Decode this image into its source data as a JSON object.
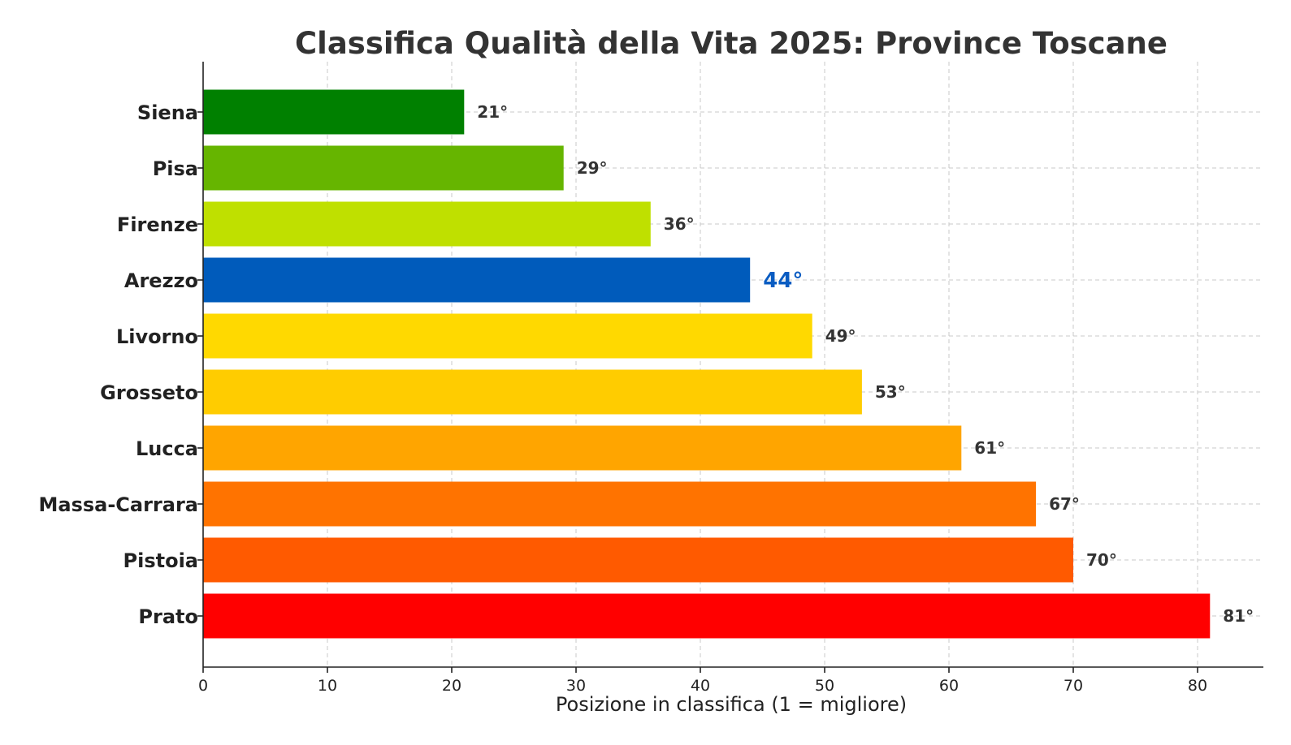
{
  "chart_data": {
    "type": "bar",
    "orientation": "horizontal",
    "title": "Classifica Qualità della Vita 2025: Province Toscane",
    "xlabel": "Posizione in classifica (1 = migliore)",
    "ylabel": "",
    "xlim": [
      0,
      85
    ],
    "xticks": [
      0,
      10,
      20,
      30,
      40,
      50,
      60,
      70,
      80
    ],
    "grid": true,
    "categories": [
      "Siena",
      "Pisa",
      "Firenze",
      "Arezzo",
      "Livorno",
      "Grosseto",
      "Lucca",
      "Massa-Carrara",
      "Pistoia",
      "Prato"
    ],
    "values": [
      21,
      29,
      36,
      44,
      49,
      53,
      61,
      67,
      70,
      81
    ],
    "value_labels": [
      "21°",
      "29°",
      "36°",
      "44°",
      "49°",
      "53°",
      "61°",
      "67°",
      "70°",
      "81°"
    ],
    "colors": [
      "#008000",
      "#66b500",
      "#bfe000",
      "#005bbb",
      "#ffd900",
      "#ffcc00",
      "#ffa500",
      "#ff7300",
      "#ff5a00",
      "#ff0000"
    ],
    "highlight": "Arezzo",
    "highlight_color": "#0a5cc2"
  }
}
